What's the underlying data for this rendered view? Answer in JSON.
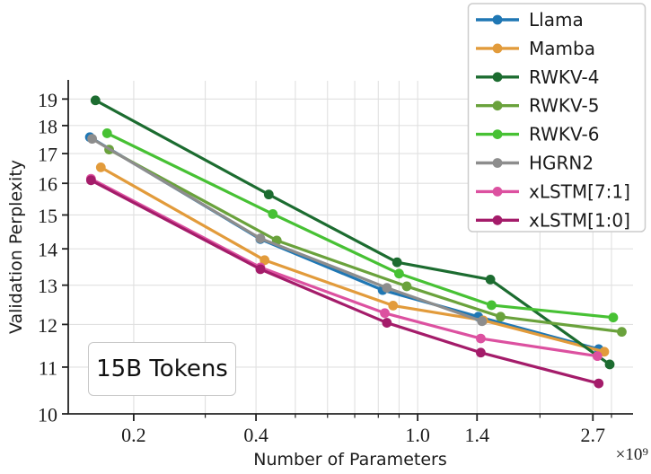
{
  "figure": {
    "background": "#ffffff",
    "grid_color": "#e0e0e0",
    "axis_color": "#222222",
    "legend_border_color": "#cccccc",
    "annotation_border_color": "#c8c8c8"
  },
  "chart_data": {
    "type": "line",
    "title": "",
    "xlabel": "Number of Parameters",
    "ylabel": "Validation Perplexity",
    "x_offset_label": "×10⁹",
    "annotation": "15B Tokens",
    "x_scale": "log",
    "y_scale": "log",
    "xlim": [
      0.138,
      3.39
    ],
    "ylim": [
      10,
      19.72
    ],
    "grid": true,
    "legend_position": "upper right",
    "x_major_ticks": [
      0.2,
      0.4,
      1.0,
      1.4,
      2.7
    ],
    "x_major_tick_labels": [
      "0.2",
      "0.4",
      "1.0",
      "1.4",
      "2.7"
    ],
    "x_minor_ticks": [
      0.3,
      0.5,
      0.6,
      0.7,
      0.8,
      0.9,
      2.0,
      3.0
    ],
    "y_ticks": [
      10,
      11,
      12,
      13,
      14,
      15,
      16,
      17,
      18,
      19
    ],
    "y_tick_labels": [
      "10",
      "11",
      "12",
      "13",
      "14",
      "15",
      "16",
      "17",
      "18",
      "19"
    ],
    "series": [
      {
        "name": "Llama",
        "color": "#1f77b4",
        "x": [
          0.156,
          0.41,
          0.82,
          1.41,
          2.79
        ],
        "y": [
          17.58,
          14.28,
          12.87,
          12.19,
          11.41
        ]
      },
      {
        "name": "Mamba",
        "color": "#e29b3b",
        "x": [
          0.166,
          0.42,
          0.87,
          1.45,
          2.88
        ],
        "y": [
          16.53,
          13.68,
          12.47,
          12.1,
          11.35
        ]
      },
      {
        "name": "RWKV-4",
        "color": "#1c6c30",
        "x": [
          0.161,
          0.43,
          0.89,
          1.51,
          2.97
        ],
        "y": [
          18.95,
          15.64,
          13.62,
          13.15,
          11.06
        ]
      },
      {
        "name": "RWKV-5",
        "color": "#6aa23c",
        "x": [
          0.174,
          0.45,
          0.94,
          1.6,
          3.18
        ],
        "y": [
          17.14,
          14.24,
          12.97,
          12.19,
          11.82
        ]
      },
      {
        "name": "RWKV-6",
        "color": "#47c134",
        "x": [
          0.172,
          0.44,
          0.9,
          1.52,
          3.03
        ],
        "y": [
          17.72,
          15.03,
          13.31,
          12.48,
          12.17
        ]
      },
      {
        "name": "HGRN2",
        "color": "#8d8d8d",
        "x": [
          0.158,
          0.41,
          0.84,
          1.44
        ],
        "y": [
          17.52,
          14.3,
          12.93,
          12.08
        ]
      },
      {
        "name": "xLSTM[7:1]",
        "color": "#dc51a0",
        "x": [
          0.157,
          0.41,
          0.83,
          1.43,
          2.77
        ],
        "y": [
          16.15,
          13.48,
          12.28,
          11.66,
          11.25
        ]
      },
      {
        "name": "xLSTM[1:0]",
        "color": "#a41c6a",
        "x": [
          0.157,
          0.41,
          0.84,
          1.43,
          2.79
        ],
        "y": [
          16.1,
          13.43,
          12.04,
          11.33,
          10.64
        ]
      }
    ]
  }
}
